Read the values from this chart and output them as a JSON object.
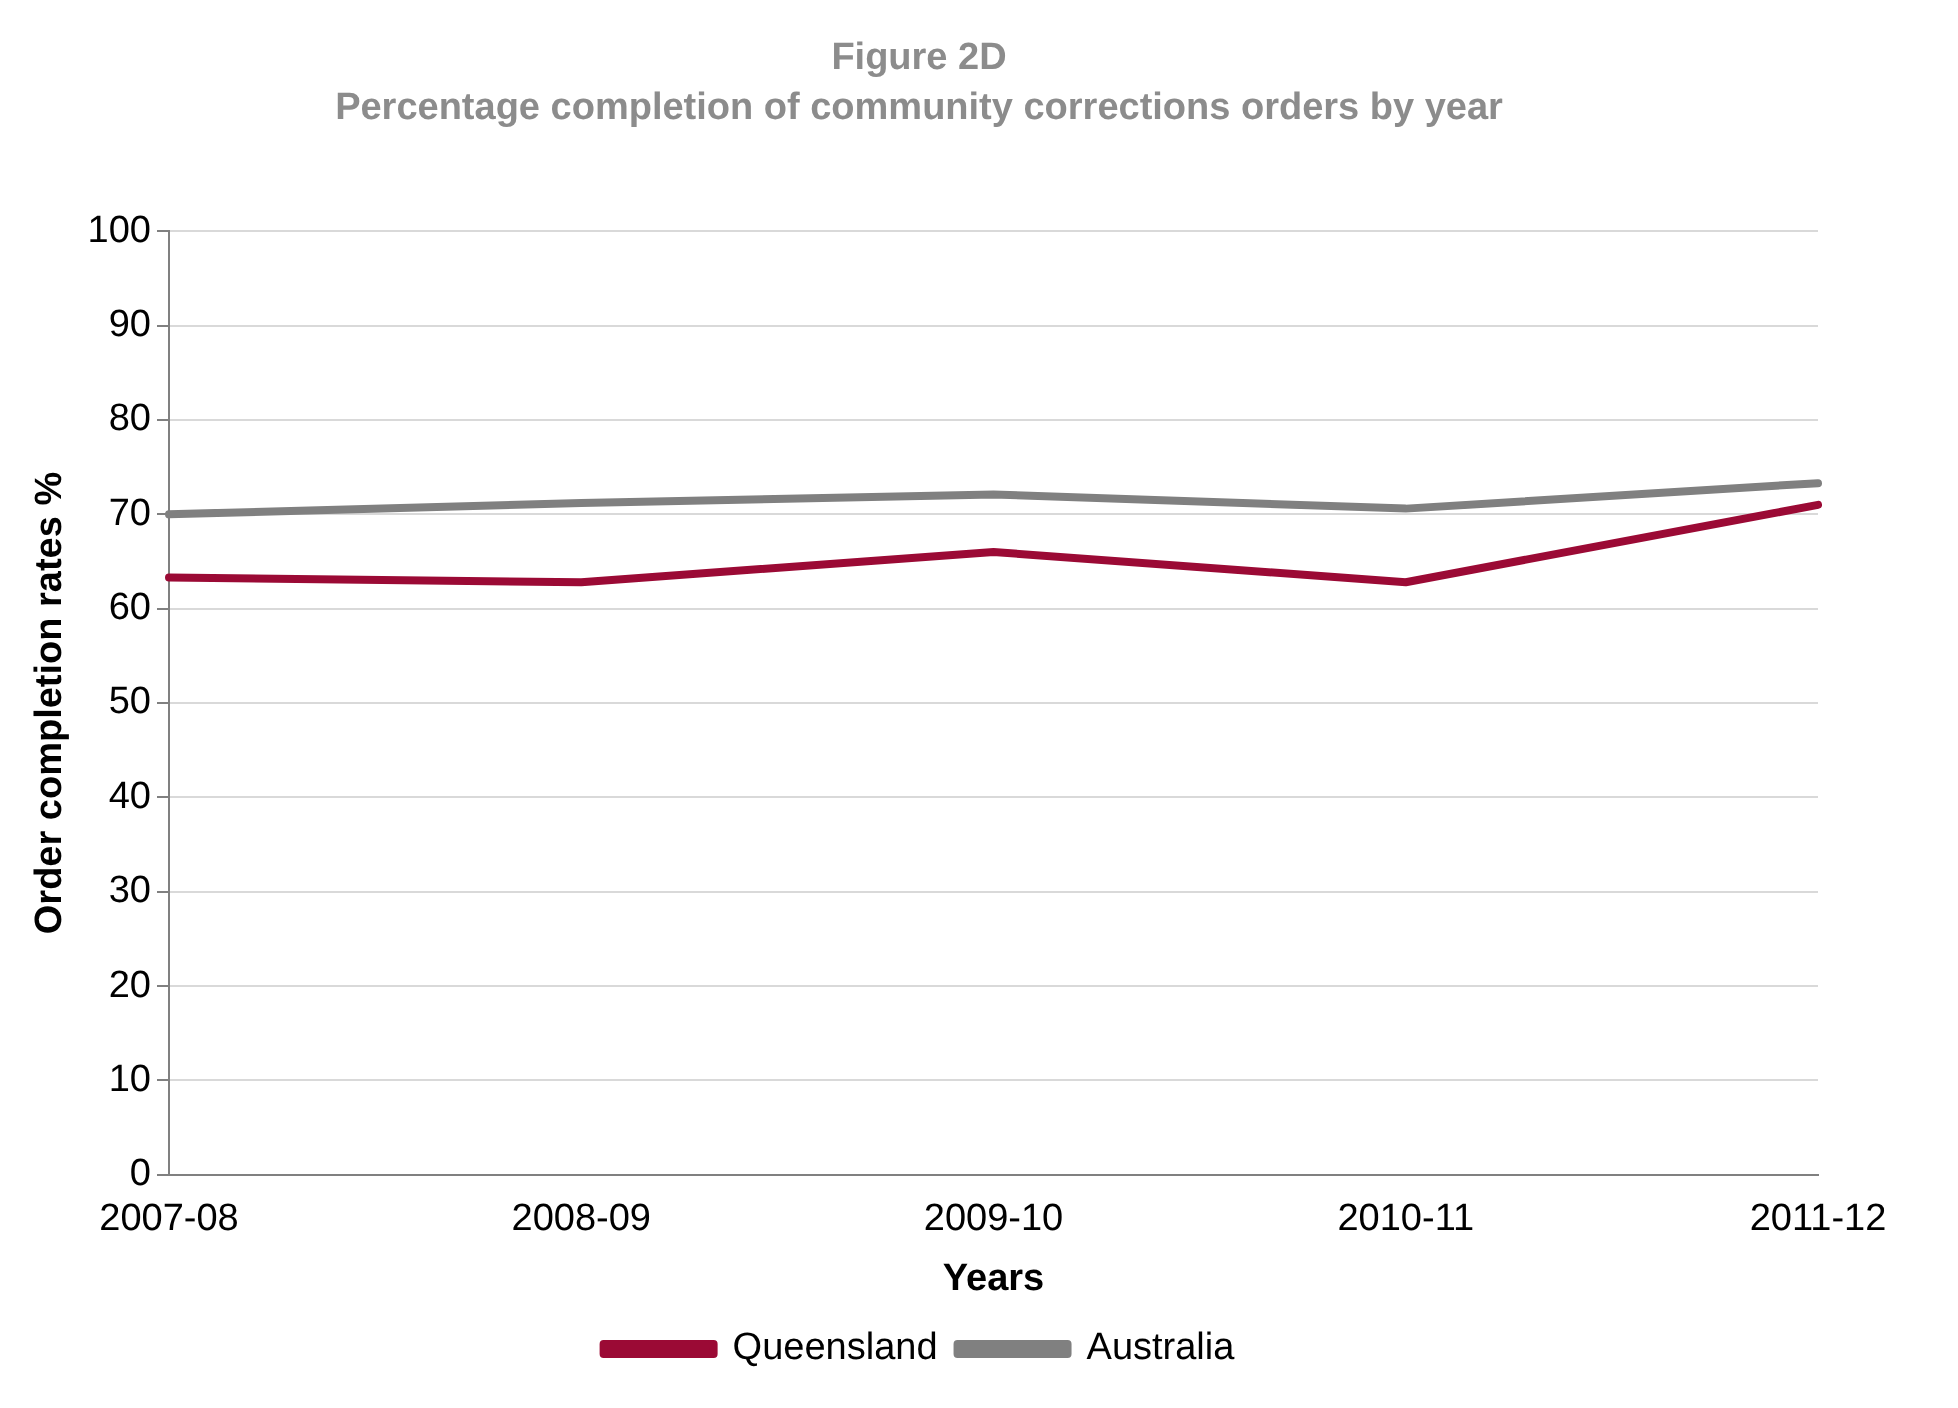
{
  "chart_data": {
    "type": "line",
    "title": "Figure 2D",
    "subtitle": "Percentage completion of community corrections orders by year",
    "xlabel": "Years",
    "ylabel": "Order completion rates %",
    "categories": [
      "2007-08",
      "2008-09",
      "2009-10",
      "2010-11",
      "2011-12"
    ],
    "series": [
      {
        "name": "Queensland",
        "color": "#9b0a35",
        "values": [
          63.3,
          62.8,
          66.0,
          62.8,
          71.0
        ]
      },
      {
        "name": "Australia",
        "color": "#808080",
        "values": [
          70.0,
          71.2,
          72.1,
          70.6,
          73.3
        ]
      }
    ],
    "ylim": [
      0,
      100
    ],
    "yticks": [
      0,
      10,
      20,
      30,
      40,
      50,
      60,
      70,
      80,
      90,
      100
    ],
    "grid": "y",
    "legend": "bottom",
    "marker": "none",
    "line_style": "solid"
  }
}
